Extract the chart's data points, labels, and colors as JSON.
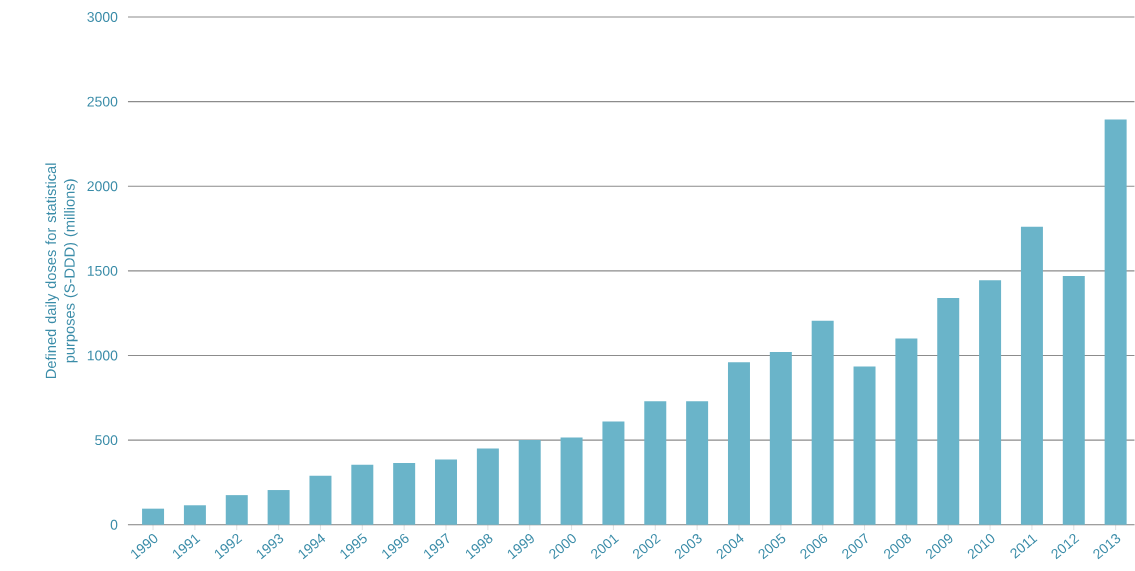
{
  "chart_data": {
    "type": "bar",
    "ylabel": "Defined daily doses for statistical purposes (S-DDD) (millions)",
    "categories": [
      "1990",
      "1991",
      "1992",
      "1993",
      "1994",
      "1995",
      "1996",
      "1997",
      "1998",
      "1999",
      "2000",
      "2001",
      "2002",
      "2003",
      "2004",
      "2005",
      "2006",
      "2007",
      "2008",
      "2009",
      "2010",
      "2011",
      "2012",
      "2013"
    ],
    "values": [
      95,
      115,
      175,
      205,
      290,
      355,
      365,
      385,
      450,
      500,
      515,
      610,
      730,
      730,
      960,
      1020,
      1205,
      935,
      1100,
      1340,
      1445,
      1760,
      1470,
      2395
    ],
    "color": "#6ab4c9",
    "ylim": [
      0,
      3000
    ],
    "yticks": [
      0,
      500,
      1000,
      1500,
      2000,
      2500,
      3000
    ],
    "grid": "y"
  }
}
